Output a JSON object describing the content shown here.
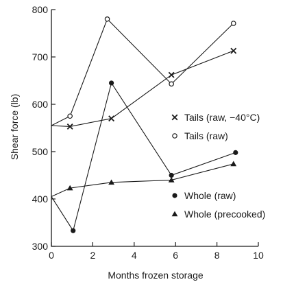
{
  "chart_data": {
    "type": "line",
    "xlabel": "Months frozen storage",
    "ylabel": "Shear force (lb)",
    "xlim": [
      0,
      10
    ],
    "ylim": [
      300,
      800
    ],
    "xticks": [
      0,
      2,
      4,
      6,
      8,
      10
    ],
    "yticks": [
      300,
      400,
      500,
      600,
      700,
      800
    ],
    "grid": false,
    "legend_position": "right, inside plot",
    "series": [
      {
        "name": "Tails (raw, −40°C)",
        "marker": "x",
        "x": [
          0,
          0.9,
          2.9,
          5.8,
          8.8
        ],
        "y": [
          555,
          553,
          570,
          662,
          713
        ]
      },
      {
        "name": "Tails (raw)",
        "marker": "open-circle",
        "x": [
          0,
          0.9,
          2.7,
          5.8,
          8.8
        ],
        "y": [
          555,
          575,
          780,
          643,
          771
        ]
      },
      {
        "name": "Whole (raw)",
        "marker": "filled-circle",
        "x": [
          0,
          1.05,
          2.9,
          5.8,
          8.9
        ],
        "y": [
          405,
          333,
          645,
          450,
          498
        ]
      },
      {
        "name": "Whole (precooked)",
        "marker": "filled-triangle",
        "x": [
          0,
          0.9,
          2.9,
          5.8,
          8.8
        ],
        "y": [
          405,
          423,
          435,
          440,
          474
        ]
      }
    ]
  }
}
